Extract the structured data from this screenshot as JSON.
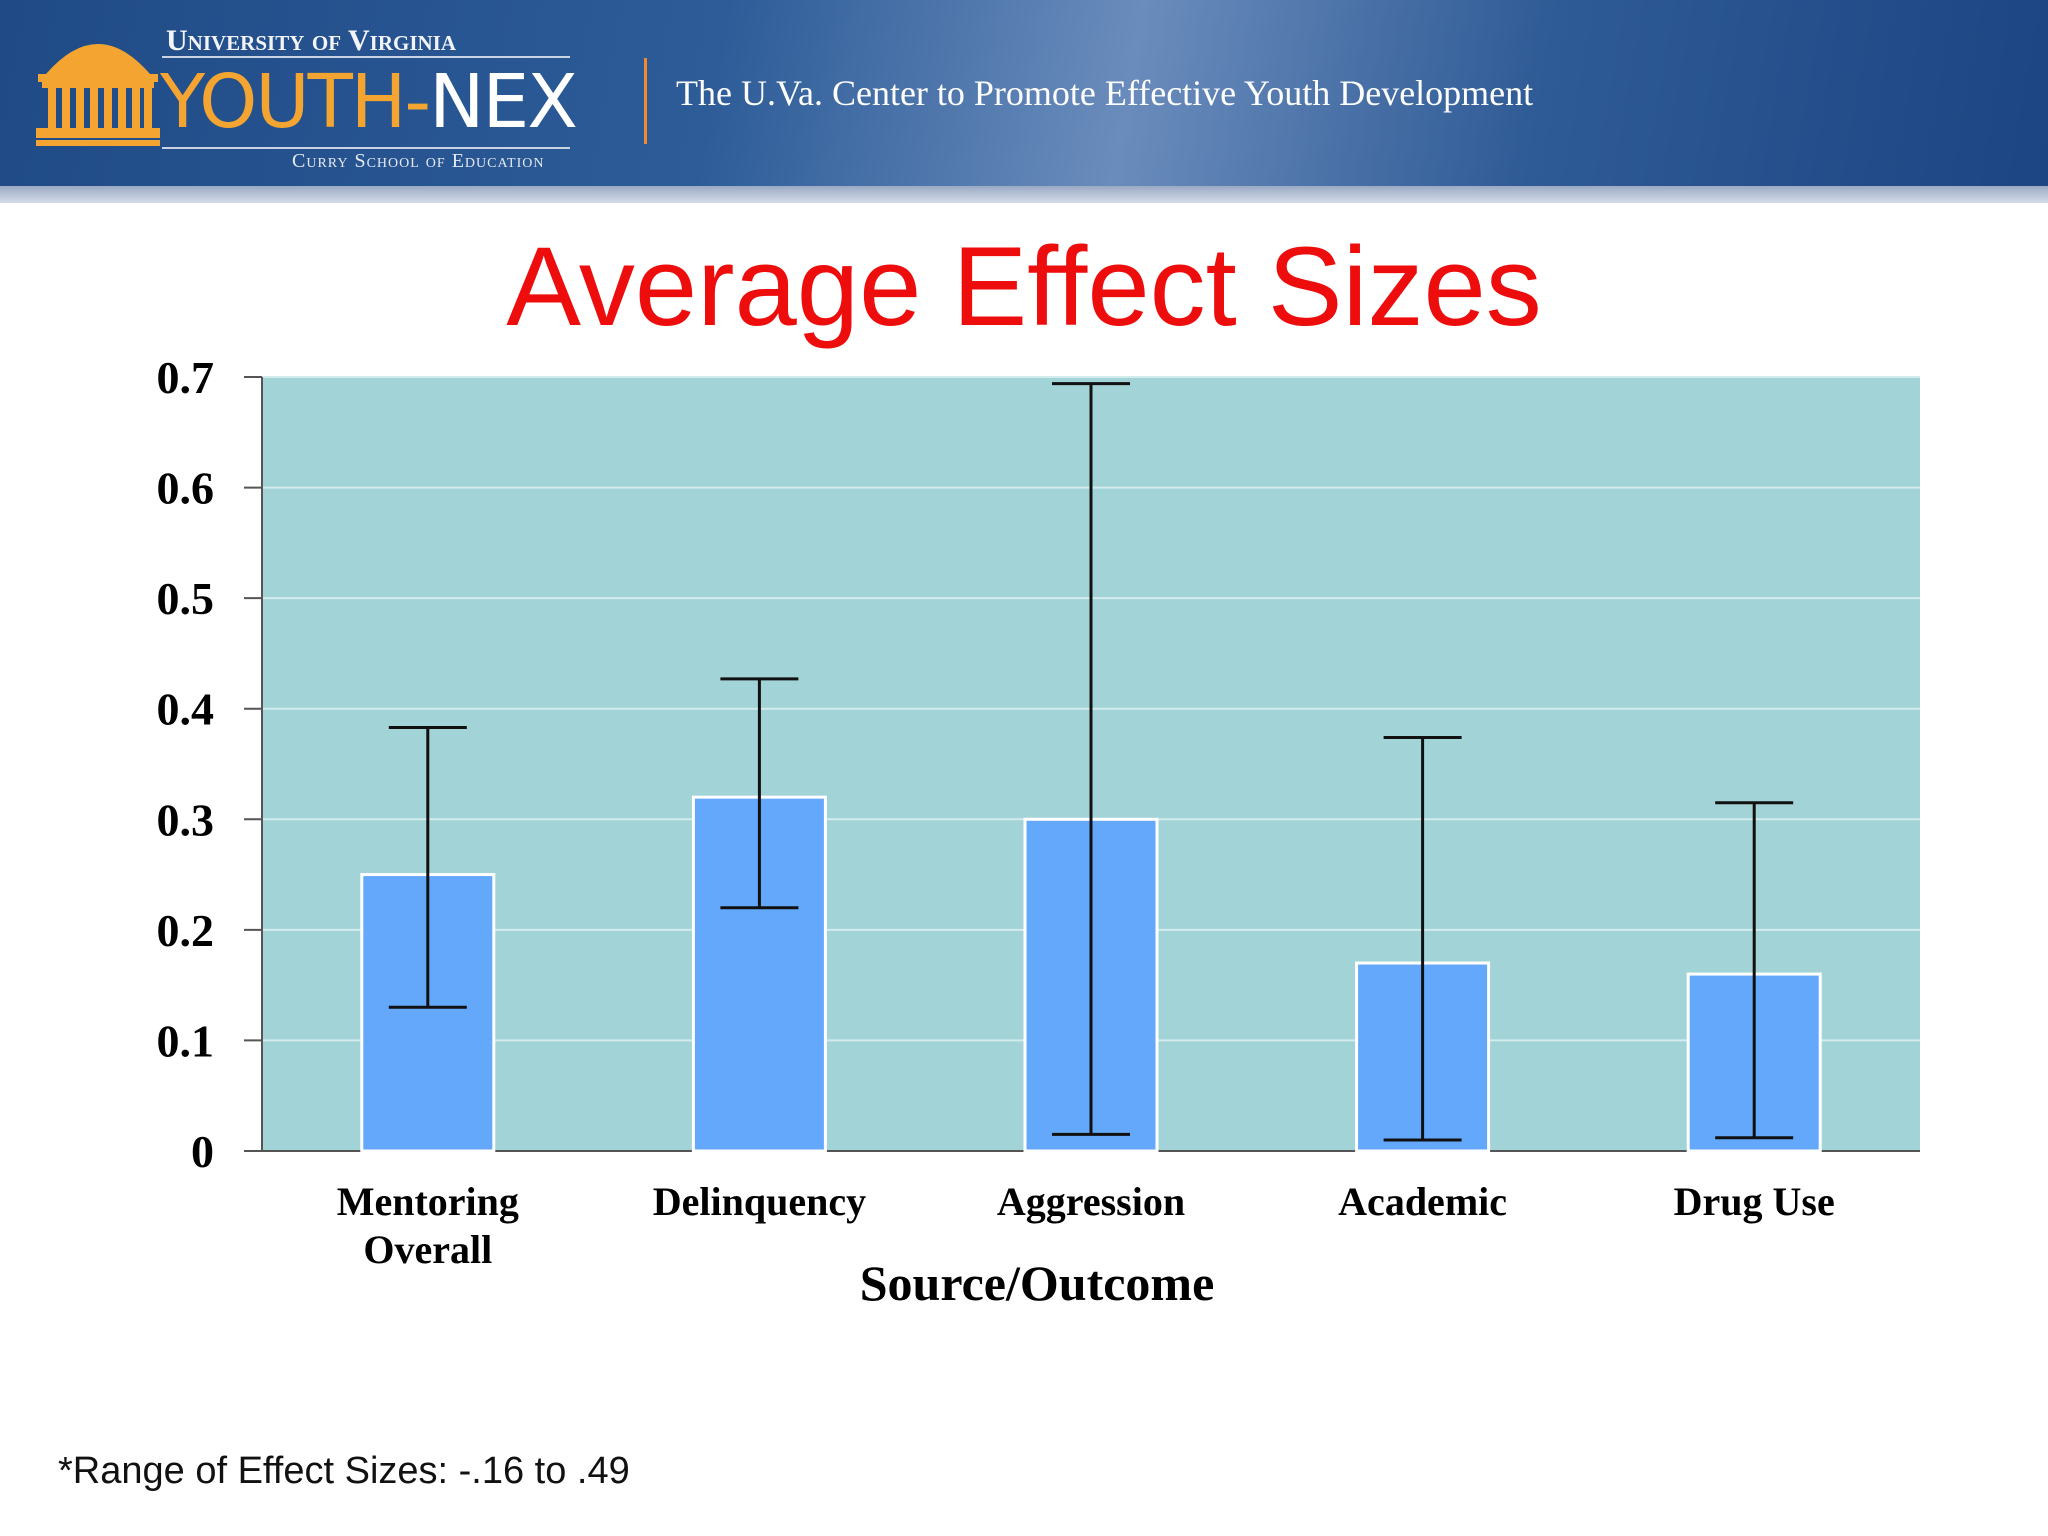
{
  "header": {
    "university": "University of Virginia",
    "brand_part1": "YOUTH-",
    "brand_part2": "NEX",
    "school": "Curry School of Education",
    "tagline": "The U.Va. Center to Promote Effective Youth Development",
    "accent_color": "#f4a531"
  },
  "slide": {
    "title": "Average Effect Sizes",
    "footnote": "*Range of Effect Sizes: -.16 to .49"
  },
  "chart_data": {
    "type": "bar",
    "title": "",
    "xlabel": "Source/Outcome",
    "ylabel": "",
    "categories": [
      "Mentoring Overall",
      "Delinquency",
      "Aggression",
      "Academic",
      "Drug Use"
    ],
    "category_lines": [
      [
        "Mentoring",
        "Overall"
      ],
      [
        "Delinquency"
      ],
      [
        "Aggression"
      ],
      [
        "Academic"
      ],
      [
        "Drug Use"
      ]
    ],
    "values": [
      0.25,
      0.32,
      0.3,
      0.17,
      0.16
    ],
    "error_low": [
      0.13,
      0.22,
      0.015,
      0.01,
      0.012
    ],
    "error_high": [
      0.383,
      0.427,
      0.694,
      0.374,
      0.315
    ],
    "ylim": [
      0,
      0.7
    ],
    "yticks": [
      "0",
      "0.1",
      "0.2",
      "0.3",
      "0.4",
      "0.5",
      "0.6",
      "0.7"
    ],
    "grid": true,
    "legend": "none",
    "colors": {
      "bar": "#64a8fc",
      "bar_edge": "#ffffff",
      "plot_background": "#a2d3d6",
      "gridline": "#d2ecee",
      "error_bar": "#111111"
    }
  }
}
